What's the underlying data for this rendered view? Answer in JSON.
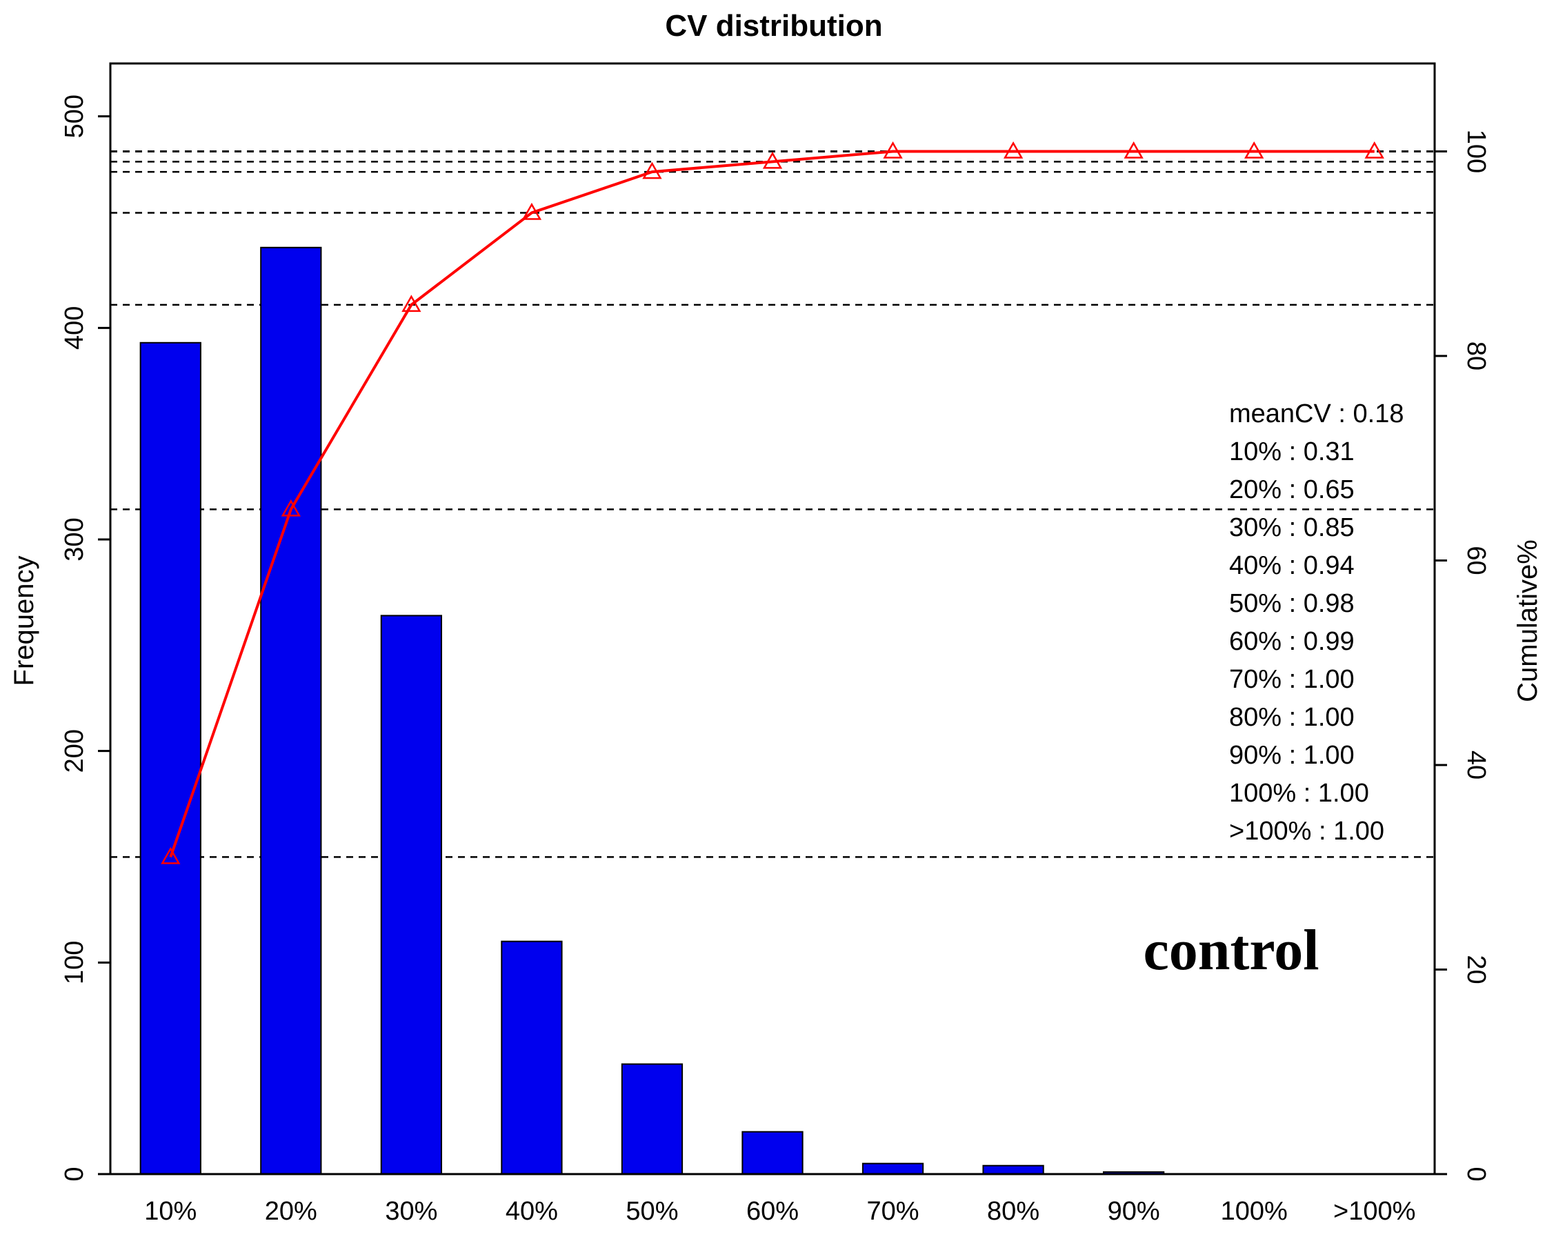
{
  "chart_data": {
    "type": "bar",
    "title": "CV distribution",
    "xlabel": "",
    "ylabel": "Frequency",
    "y2label": "Cumulative%",
    "categories": [
      "10%",
      "20%",
      "30%",
      "40%",
      "50%",
      "60%",
      "70%",
      "80%",
      "90%",
      "100%",
      ">100%"
    ],
    "ylim": [
      0,
      525
    ],
    "y_ticks": [
      0,
      100,
      200,
      300,
      400,
      500
    ],
    "y2lim": [
      0,
      108.6
    ],
    "y2_ticks": [
      0,
      20,
      40,
      60,
      80,
      100
    ],
    "series": [
      {
        "name": "Frequency",
        "kind": "bar",
        "axis": "left",
        "color": "#0000ee",
        "values": [
          393,
          438,
          264,
          110,
          52,
          20,
          5,
          4,
          1,
          0,
          0
        ]
      },
      {
        "name": "Cumulative%",
        "kind": "line",
        "axis": "right",
        "color": "#ff0000",
        "marker": "triangle",
        "values": [
          31,
          65,
          85,
          94,
          98,
          99,
          100,
          100,
          100,
          100,
          100
        ]
      }
    ],
    "reference_lines": {
      "style": "dashed",
      "axis": "right",
      "values": [
        31,
        65,
        85,
        94,
        98,
        99,
        100,
        100,
        100,
        100,
        100
      ]
    },
    "legend": {
      "placement": "right",
      "entries": [
        "meanCV : 0.18",
        "10% : 0.31",
        "20% : 0.65",
        "30% : 0.85",
        "40% : 0.94",
        "50% : 0.98",
        "60% : 0.99",
        "70% : 1.00",
        "80% : 1.00",
        "90% : 1.00",
        "100% : 1.00",
        ">100% : 1.00"
      ]
    },
    "annotation": "control"
  }
}
